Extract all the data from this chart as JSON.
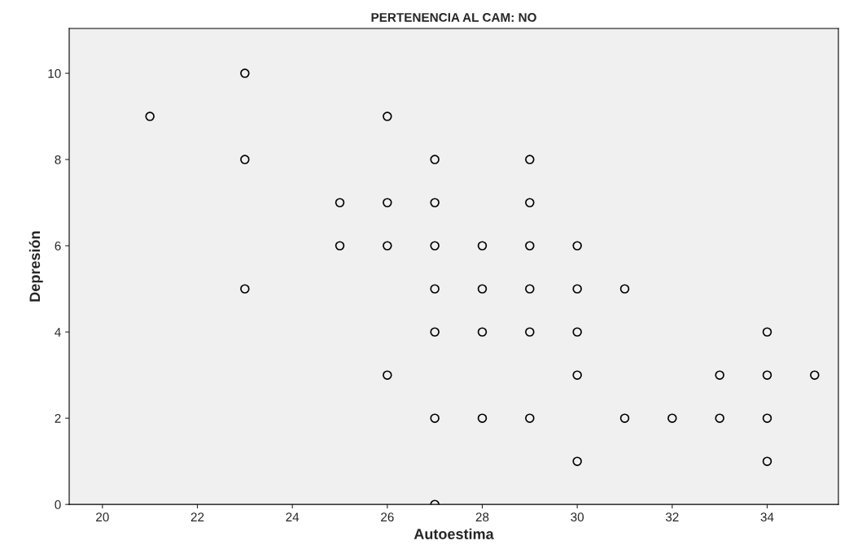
{
  "chart_data": {
    "type": "scatter",
    "title": "PERTENENCIA AL CAM: NO",
    "xlabel": "Autoestima",
    "ylabel": "Depresión",
    "x": [
      21,
      23,
      23,
      23,
      25,
      25,
      26,
      26,
      26,
      26,
      27,
      27,
      27,
      27,
      27,
      27,
      27,
      28,
      28,
      28,
      28,
      29,
      29,
      29,
      29,
      29,
      29,
      30,
      30,
      30,
      30,
      30,
      31,
      31,
      32,
      33,
      33,
      34,
      34,
      34,
      34,
      35
    ],
    "series": [
      {
        "color": "#000000",
        "values": [
          9,
          10,
          8,
          5,
          7,
          6,
          9,
          7,
          6,
          3,
          8,
          7,
          6,
          5,
          4,
          2,
          0,
          6,
          5,
          4,
          2,
          8,
          7,
          6,
          5,
          4,
          2,
          6,
          5,
          4,
          3,
          1,
          5,
          2,
          2,
          3,
          2,
          4,
          3,
          2,
          1,
          3
        ]
      }
    ],
    "xlim": [
      19.3,
      35.5
    ],
    "ylim": [
      0,
      11.04
    ],
    "xticks": [
      20,
      22,
      24,
      26,
      28,
      30,
      32,
      34
    ],
    "yticks": [
      0,
      2,
      4,
      6,
      8,
      10
    ],
    "marker": "circle",
    "grid": false,
    "legend": false
  }
}
